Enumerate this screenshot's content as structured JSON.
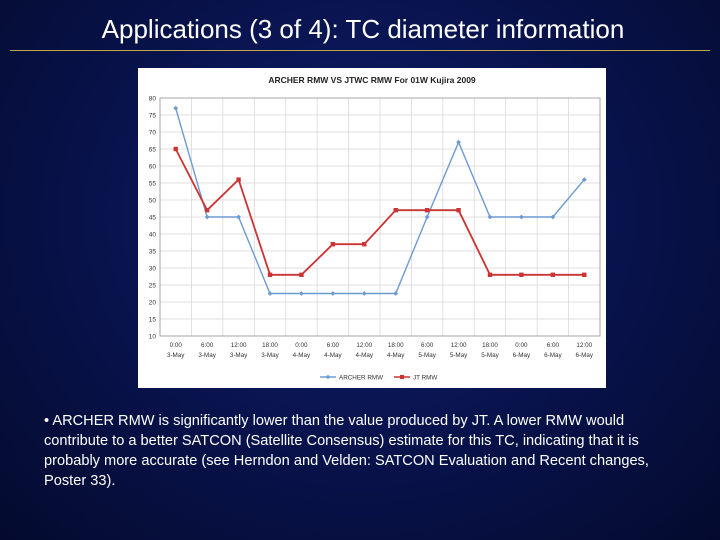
{
  "slide": {
    "title": "Applications (3 of 4): TC diameter information",
    "bullet": "• ARCHER RMW is significantly lower than the value produced by JT. A lower RMW would contribute to a better SATCON (Satellite Consensus) estimate for this TC, indicating that it is probably more accurate (see Herndon and Velden: SATCON Evaluation and Recent changes, Poster 33)."
  },
  "chart_data": {
    "type": "line",
    "title": "ARCHER RMW VS JTWC RMW For 01W Kujira 2009",
    "categories": [
      {
        "time": "0:00",
        "date": "3-May"
      },
      {
        "time": "6:00",
        "date": "3-May"
      },
      {
        "time": "12:00",
        "date": "3-May"
      },
      {
        "time": "18:00",
        "date": "3-May"
      },
      {
        "time": "0:00",
        "date": "4-May"
      },
      {
        "time": "6:00",
        "date": "4-May"
      },
      {
        "time": "12:00",
        "date": "4-May"
      },
      {
        "time": "18:00",
        "date": "4-May"
      },
      {
        "time": "6:00",
        "date": "5-May"
      },
      {
        "time": "12:00",
        "date": "5-May"
      },
      {
        "time": "18:00",
        "date": "5-May"
      },
      {
        "time": "0:00",
        "date": "6-May"
      },
      {
        "time": "6:00",
        "date": "6-May"
      },
      {
        "time": "12:00",
        "date": "6-May"
      }
    ],
    "series": [
      {
        "name": "ARCHER RMW",
        "color": "#6c9bd2",
        "marker": "diamond",
        "values": [
          77,
          45,
          45,
          22.5,
          22.5,
          22.5,
          22.5,
          22.5,
          45,
          67,
          45,
          45,
          45,
          56
        ]
      },
      {
        "name": "JT RMW",
        "color": "#cc3333",
        "marker": "square",
        "values": [
          65,
          47,
          56,
          28,
          28,
          37,
          37,
          47,
          47,
          47,
          28,
          28,
          28,
          28
        ]
      }
    ],
    "ylim": [
      10,
      80
    ],
    "yticks": [
      10,
      15,
      20,
      25,
      30,
      35,
      40,
      45,
      50,
      55,
      60,
      65,
      70,
      75,
      80
    ],
    "xlabel": "",
    "ylabel": "",
    "grid": true,
    "legend": "bottom"
  }
}
